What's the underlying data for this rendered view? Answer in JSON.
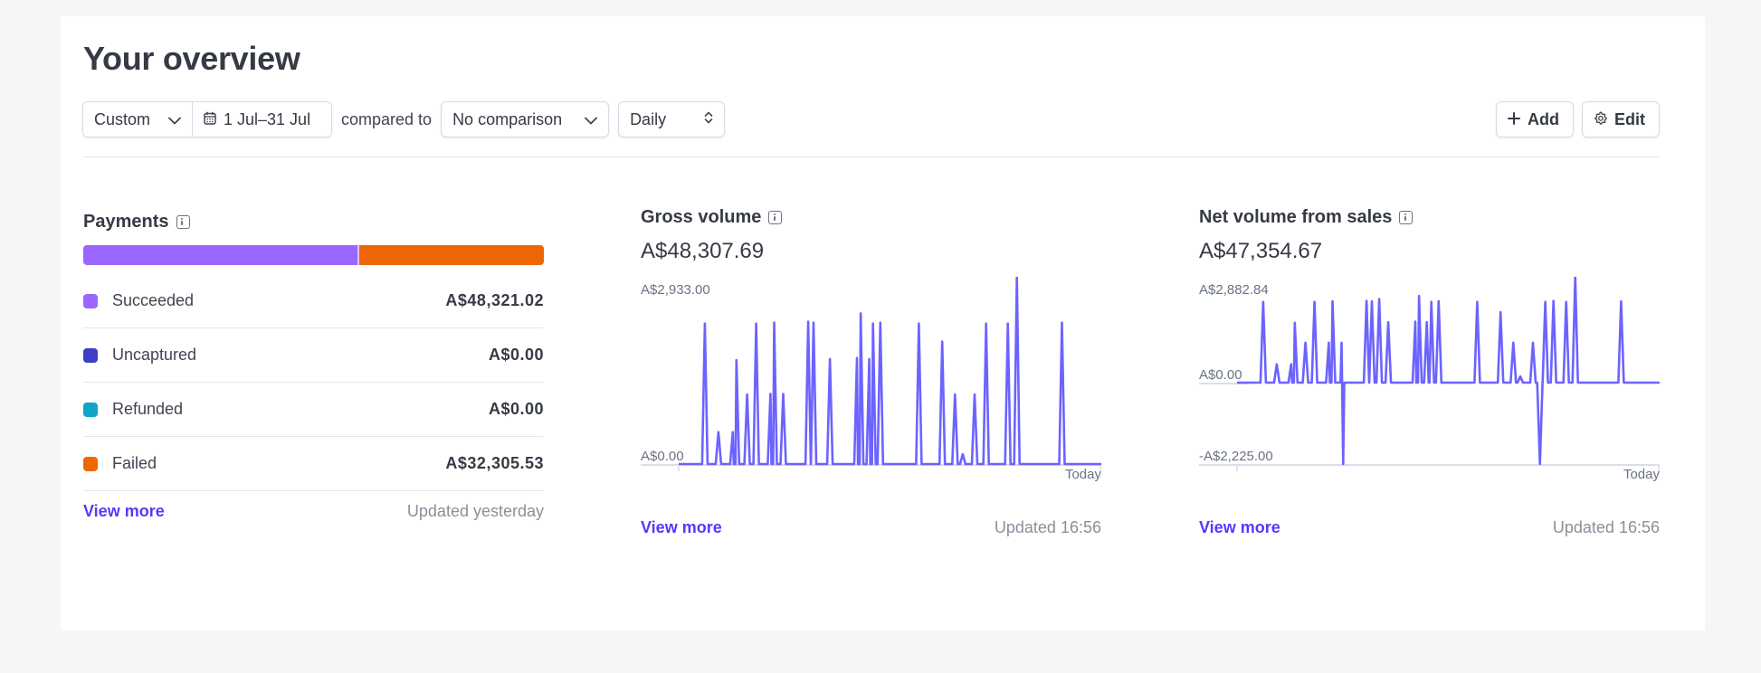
{
  "header": {
    "title": "Your overview",
    "range_preset": "Custom",
    "date_range": "1 Jul–31 Jul",
    "compared_to_label": "compared to",
    "comparison": "No comparison",
    "interval": "Daily",
    "add_label": "Add",
    "edit_label": "Edit"
  },
  "icons": {
    "preset_chevron": "chevron-down-icon",
    "calendar": "calendar-icon",
    "comparison_chevron": "chevron-down-icon",
    "interval_updown": "chevron-up-down-icon",
    "add": "plus-icon",
    "edit": "gear-icon",
    "info": "info-icon"
  },
  "payments": {
    "title": "Payments",
    "bar": [
      {
        "label": "Succeeded",
        "color": "#9966ff"
      },
      {
        "label": "Failed",
        "color": "#ed6704"
      }
    ],
    "rows": [
      {
        "label": "Succeeded",
        "value": "A$48,321.02",
        "color": "#9966ff"
      },
      {
        "label": "Uncaptured",
        "value": "A$0.00",
        "color": "#3d3fc6"
      },
      {
        "label": "Refunded",
        "value": "A$0.00",
        "color": "#0ea5c8"
      },
      {
        "label": "Failed",
        "value": "A$32,305.53",
        "color": "#ed6704"
      }
    ],
    "view_more": "View more",
    "updated": "Updated yesterday"
  },
  "gross_volume": {
    "title": "Gross volume",
    "value": "A$48,307.69",
    "y_max_label": "A$2,933.00",
    "y_min_label": "A$0.00",
    "x_end_label": "Today",
    "view_more": "View more",
    "updated": "Updated 16:56"
  },
  "net_volume": {
    "title": "Net volume from sales",
    "value": "A$47,354.67",
    "y_max_label": "A$2,882.84",
    "y_zero_label": "A$0.00",
    "y_min_label": "-A$2,225.00",
    "x_end_label": "Today",
    "view_more": "View more",
    "updated": "Updated 16:56"
  },
  "colors": {
    "accent": "#533afd",
    "series_line": "#6c63ff",
    "succeeded": "#9966ff",
    "failed": "#ed6704"
  },
  "chart_data": [
    {
      "type": "line",
      "title": "Gross volume",
      "xlabel": "",
      "ylabel": "",
      "ylim": [
        0,
        2933.0
      ],
      "x_range_label": [
        "",
        "Today"
      ],
      "series": [
        {
          "name": "Gross volume",
          "spikes_x_frac": [
            0.033,
            0.066,
            0.101,
            0.11,
            0.136,
            0.158,
            0.193,
            0.202,
            0.224,
            0.285,
            0.298,
            0.338,
            0.404,
            0.413,
            0.434,
            0.443,
            0.461,
            0.555,
            0.612,
            0.643,
            0.662,
            0.691,
            0.719,
            0.772,
            0.794,
            0.904
          ],
          "values": [
            2200,
            500,
            500,
            1630,
            1090,
            2200,
            1100,
            2215,
            1100,
            2230,
            2215,
            1645,
            1660,
            2360,
            1645,
            2200,
            2215,
            2200,
            1920,
            1090,
            155,
            1090,
            2200,
            2200,
            2933,
            2215
          ]
        }
      ]
    },
    {
      "type": "line",
      "title": "Net volume from sales",
      "xlabel": "",
      "ylabel": "",
      "ylim": [
        -2225.0,
        2882.84
      ],
      "x_range_label": [
        "",
        "Today"
      ],
      "series": [
        {
          "name": "Net volume from sales",
          "spikes_x_frac": [
            0.033,
            0.066,
            0.101,
            0.11,
            0.136,
            0.158,
            0.193,
            0.202,
            0.224,
            0.228,
            0.285,
            0.298,
            0.316,
            0.338,
            0.404,
            0.413,
            0.432,
            0.443,
            0.461,
            0.555,
            0.612,
            0.643,
            0.66,
            0.691,
            0.708,
            0.721,
            0.741,
            0.772,
            0.794,
            0.906
          ],
          "values": [
            2200,
            500,
            500,
            1630,
            1090,
            2200,
            1090,
            2215,
            1090,
            -2225,
            2230,
            2215,
            2280,
            1645,
            1660,
            2360,
            1645,
            2200,
            2215,
            2200,
            1920,
            1090,
            170,
            1090,
            -2225,
            2200,
            2230,
            2200,
            2882.84,
            2215
          ]
        }
      ]
    }
  ]
}
